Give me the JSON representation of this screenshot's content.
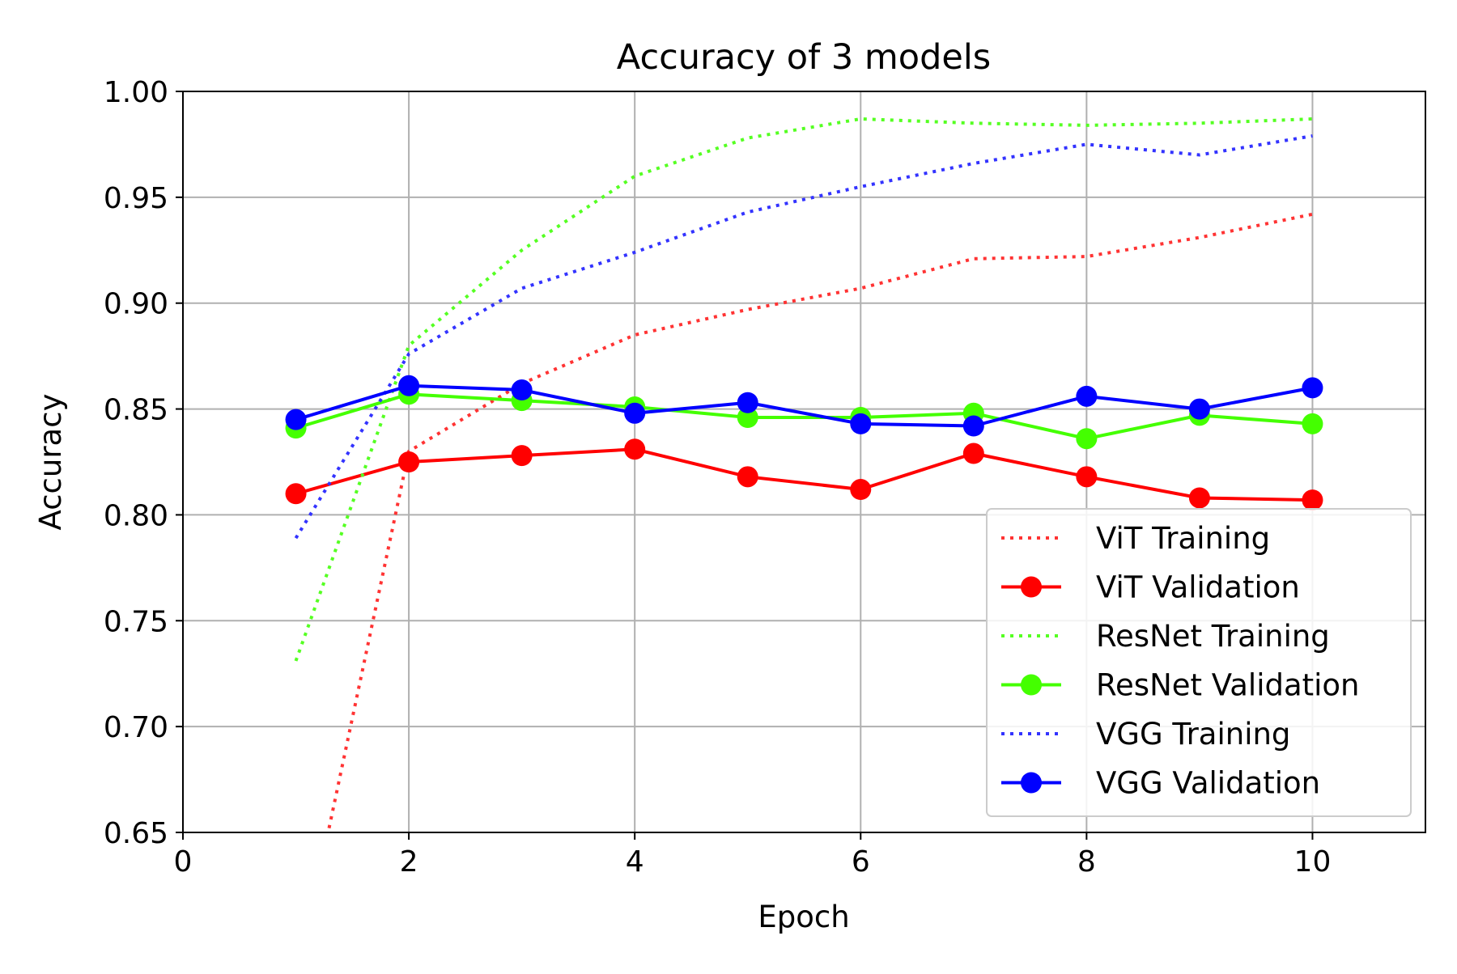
{
  "chart_data": {
    "type": "line",
    "title": "Accuracy of 3 models",
    "xlabel": "Epoch",
    "ylabel": "Accuracy",
    "xlim": [
      0,
      11
    ],
    "ylim": [
      0.65,
      1.0
    ],
    "xticks": [
      0,
      2,
      4,
      6,
      8,
      10
    ],
    "xtick_labels": [
      "0",
      "2",
      "4",
      "6",
      "8",
      "10"
    ],
    "yticks": [
      0.65,
      0.7,
      0.75,
      0.8,
      0.85,
      0.9,
      0.95,
      1.0
    ],
    "ytick_labels": [
      "0.65",
      "0.70",
      "0.75",
      "0.80",
      "0.85",
      "0.90",
      "0.95",
      "1.00"
    ],
    "grid": true,
    "legend_position": "lower-right",
    "x": [
      1,
      2,
      3,
      4,
      5,
      6,
      7,
      8,
      9,
      10
    ],
    "series": [
      {
        "name": "ViT Training",
        "style": "dotted",
        "color": "#ff3333",
        "values": [
          0.578,
          0.83,
          0.862,
          0.885,
          0.897,
          0.907,
          0.921,
          0.922,
          0.931,
          0.942
        ]
      },
      {
        "name": "ViT Validation",
        "style": "solid-marker",
        "color": "#ff0000",
        "values": [
          0.81,
          0.825,
          0.828,
          0.831,
          0.818,
          0.812,
          0.829,
          0.818,
          0.808,
          0.807
        ]
      },
      {
        "name": "ResNet Training",
        "style": "dotted",
        "color": "#55ff22",
        "values": [
          0.731,
          0.88,
          0.925,
          0.96,
          0.978,
          0.987,
          0.985,
          0.984,
          0.985,
          0.987
        ]
      },
      {
        "name": "ResNet Validation",
        "style": "solid-marker",
        "color": "#44ff00",
        "values": [
          0.841,
          0.857,
          0.854,
          0.851,
          0.846,
          0.846,
          0.848,
          0.836,
          0.847,
          0.843
        ]
      },
      {
        "name": "VGG Training",
        "style": "dotted",
        "color": "#3333ff",
        "values": [
          0.789,
          0.876,
          0.907,
          0.924,
          0.943,
          0.955,
          0.966,
          0.975,
          0.97,
          0.979
        ]
      },
      {
        "name": "VGG Validation",
        "style": "solid-marker",
        "color": "#0000ff",
        "values": [
          0.845,
          0.861,
          0.859,
          0.848,
          0.853,
          0.843,
          0.842,
          0.856,
          0.85,
          0.86
        ]
      }
    ]
  }
}
